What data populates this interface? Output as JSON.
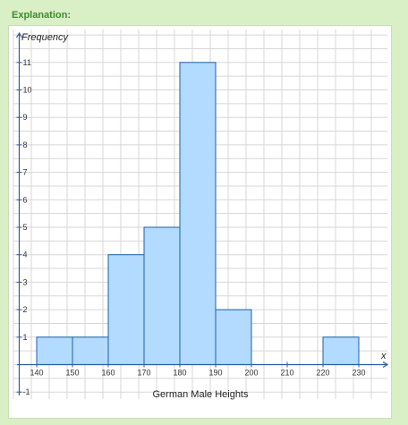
{
  "explanation": {
    "label": "Explanation:"
  },
  "chart_data": {
    "type": "bar",
    "title": "",
    "xlabel": "German Male Heights",
    "ylabel": "Frequency",
    "x_axis_symbol": "x",
    "bins": [
      {
        "start": 140,
        "end": 150,
        "value": 1
      },
      {
        "start": 150,
        "end": 160,
        "value": 1
      },
      {
        "start": 160,
        "end": 170,
        "value": 4
      },
      {
        "start": 170,
        "end": 180,
        "value": 5
      },
      {
        "start": 180,
        "end": 190,
        "value": 11
      },
      {
        "start": 190,
        "end": 200,
        "value": 2
      },
      {
        "start": 220,
        "end": 230,
        "value": 1
      }
    ],
    "x_ticks": [
      140,
      150,
      160,
      170,
      180,
      190,
      200,
      210,
      220,
      230
    ],
    "y_ticks": [
      -1,
      1,
      2,
      3,
      4,
      5,
      6,
      7,
      8,
      9,
      10,
      11
    ],
    "xlim": [
      130,
      237
    ],
    "ylim": [
      -1.4,
      12.2
    ],
    "grid": true,
    "colors": {
      "bar_fill": "#b3daff",
      "bar_stroke": "#1f5fa8",
      "grid": "#d7d7d7",
      "axis": "#2a5da0"
    }
  }
}
